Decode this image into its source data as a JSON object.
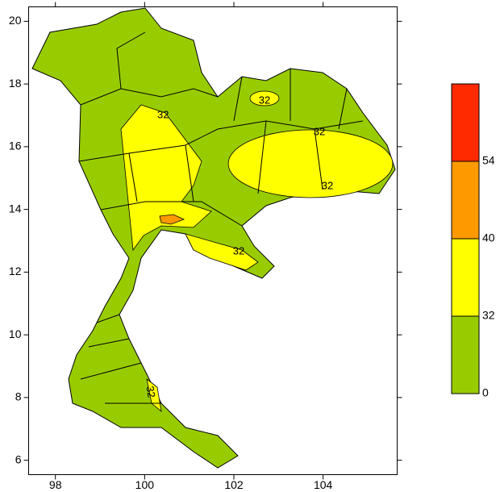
{
  "map": {
    "xlim": [
      97.4,
      105.66
    ],
    "ylim": [
      5.54,
      20.46
    ],
    "xticks": [
      98,
      100,
      102,
      104
    ],
    "yticks": [
      6,
      8,
      10,
      12,
      14,
      16,
      18,
      20
    ]
  },
  "colorbar": {
    "ticks": [
      0,
      32,
      40,
      54
    ],
    "colors": [
      "#99cc00",
      "#ffff00",
      "#ff9900",
      "#ff2a00"
    ]
  },
  "contour_labels": [
    "32",
    "32",
    "32",
    "32",
    "32",
    "32"
  ]
}
